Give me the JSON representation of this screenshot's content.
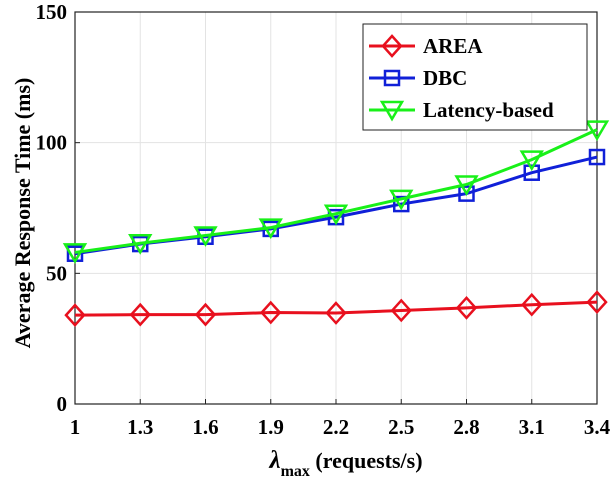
{
  "chart_data": {
    "type": "line",
    "title": "",
    "xlabel": {
      "symbol": "λ",
      "subscript": "max",
      "rest": " (requests/s)"
    },
    "ylabel": "Average Response Time (ms)",
    "categories": [
      "1",
      "1.3",
      "1.6",
      "1.9",
      "2.2",
      "2.5",
      "2.8",
      "3.1",
      "3.4"
    ],
    "yticks": [
      "0",
      "50",
      "100",
      "150"
    ],
    "ylim": [
      0,
      150
    ],
    "grid": true,
    "legend_position": "top-right",
    "series": [
      {
        "name": "AREA",
        "color": "#e8101e",
        "marker": "diamond",
        "values": [
          34,
          34.2,
          34.2,
          35,
          34.8,
          35.8,
          36.8,
          38,
          39
        ]
      },
      {
        "name": "DBC",
        "color": "#1020d8",
        "marker": "square",
        "values": [
          57.5,
          61.2,
          64,
          67,
          71.5,
          76.5,
          80.5,
          88.5,
          94.5
        ]
      },
      {
        "name": "Latency-based",
        "color": "#19f019",
        "marker": "triangle-down",
        "values": [
          58,
          61.5,
          64.5,
          67.5,
          72.8,
          78.5,
          84,
          93.5,
          105
        ]
      }
    ]
  }
}
